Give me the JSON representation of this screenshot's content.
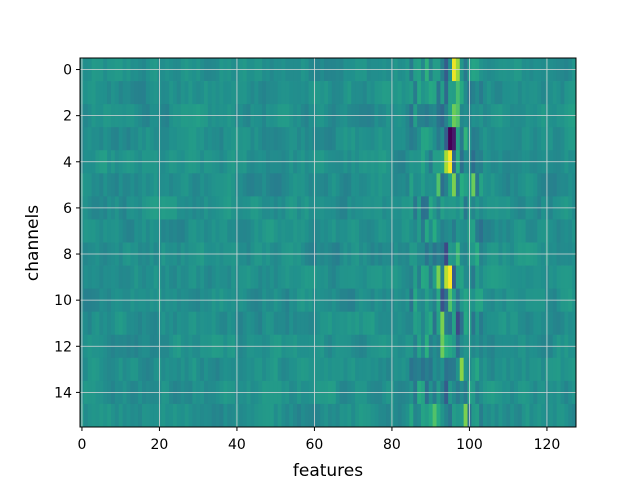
{
  "chart_data": {
    "type": "heatmap",
    "title": "",
    "xlabel": "features",
    "ylabel": "channels",
    "x_range": [
      -0.5,
      127.5
    ],
    "y_range": [
      15.5,
      -0.5
    ],
    "n_rows": 16,
    "n_cols": 128,
    "x_ticks": [
      0,
      20,
      40,
      60,
      80,
      100,
      120
    ],
    "y_ticks": [
      0,
      2,
      4,
      6,
      8,
      10,
      12,
      14
    ],
    "grid": true,
    "colormap": "viridis",
    "value_range": [
      -1,
      1
    ],
    "background_value": 0,
    "notable_cells": [
      {
        "row": 0,
        "col": 96,
        "value": 0.95
      },
      {
        "row": 0,
        "col": 97,
        "value": 0.7
      },
      {
        "row": 0,
        "col": 94,
        "value": -0.4
      },
      {
        "row": 1,
        "col": 94,
        "value": -0.3
      },
      {
        "row": 1,
        "col": 97,
        "value": 0.4
      },
      {
        "row": 2,
        "col": 96,
        "value": 0.55
      },
      {
        "row": 2,
        "col": 97,
        "value": 0.45
      },
      {
        "row": 2,
        "col": 93,
        "value": -0.3
      },
      {
        "row": 3,
        "col": 95,
        "value": -1.0
      },
      {
        "row": 3,
        "col": 96,
        "value": -0.85
      },
      {
        "row": 3,
        "col": 94,
        "value": -0.4
      },
      {
        "row": 4,
        "col": 95,
        "value": 1.0
      },
      {
        "row": 4,
        "col": 94,
        "value": 0.75
      },
      {
        "row": 4,
        "col": 96,
        "value": -0.3
      },
      {
        "row": 5,
        "col": 96,
        "value": 0.6
      },
      {
        "row": 5,
        "col": 92,
        "value": 0.45
      },
      {
        "row": 5,
        "col": 101,
        "value": 0.55
      },
      {
        "row": 8,
        "col": 94,
        "value": -0.55
      },
      {
        "row": 8,
        "col": 97,
        "value": 0.35
      },
      {
        "row": 9,
        "col": 95,
        "value": 1.0
      },
      {
        "row": 9,
        "col": 94,
        "value": 0.8
      },
      {
        "row": 9,
        "col": 92,
        "value": 0.6
      },
      {
        "row": 9,
        "col": 96,
        "value": -0.4
      },
      {
        "row": 10,
        "col": 93,
        "value": -0.5
      },
      {
        "row": 10,
        "col": 95,
        "value": 0.45
      },
      {
        "row": 11,
        "col": 93,
        "value": 0.6
      },
      {
        "row": 11,
        "col": 97,
        "value": -0.55
      },
      {
        "row": 12,
        "col": 93,
        "value": 0.55
      },
      {
        "row": 13,
        "col": 98,
        "value": 0.65
      },
      {
        "row": 14,
        "col": 94,
        "value": -0.4
      },
      {
        "row": 15,
        "col": 99,
        "value": 0.6
      },
      {
        "row": 15,
        "col": 91,
        "value": 0.45
      }
    ]
  }
}
